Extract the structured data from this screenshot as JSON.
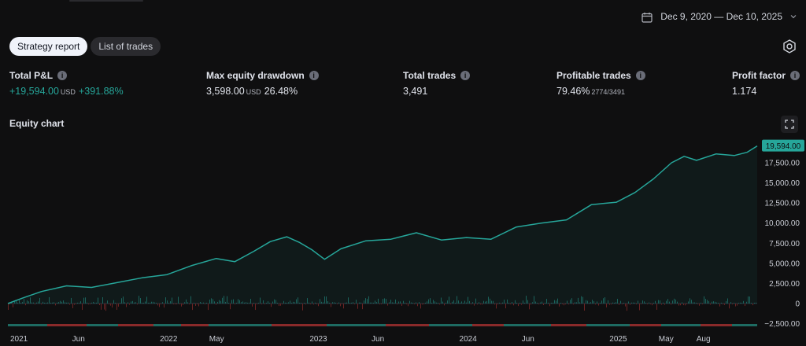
{
  "date_range": "Dec 9, 2020 — Dec 10, 2025",
  "tabs": [
    {
      "label": "Strategy report",
      "active": true
    },
    {
      "label": "List of trades",
      "active": false
    }
  ],
  "metrics": {
    "total_pl": {
      "label": "Total P&L",
      "value": "+19,594.00",
      "unit": "USD",
      "pct": "+391.88%"
    },
    "max_drawdown": {
      "label": "Max equity drawdown",
      "value": "3,598.00",
      "unit": "USD",
      "pct": "26.48%"
    },
    "total_trades": {
      "label": "Total trades",
      "value": "3,491"
    },
    "profitable_trades": {
      "label": "Profitable trades",
      "value": "79.46%",
      "detail": "2774/3491"
    },
    "profit_factor": {
      "label": "Profit factor",
      "value": "1.174"
    }
  },
  "equity_title": "Equity chart",
  "colors": {
    "accent": "#26a69a",
    "negative": "#ef5350",
    "background": "#0f0f10"
  },
  "icons": {
    "calendar": "calendar-icon",
    "settings": "settings-icon",
    "expand": "expand-icon",
    "info": "info-icon"
  },
  "chart_data": {
    "type": "area",
    "current_value_label": "19,594.00",
    "ylim": [
      -2500,
      20000
    ],
    "y_ticks": [
      -2500,
      0,
      2500,
      5000,
      7500,
      10000,
      12500,
      15000,
      17500
    ],
    "y_tick_labels": [
      "−2,500.00",
      "0",
      "2,500.00",
      "5,000.00",
      "7,500.00",
      "10,000.00",
      "12,500.00",
      "15,000.00",
      "17,500.00"
    ],
    "x_tick_labels": [
      "2021",
      "Jun",
      "2022",
      "May",
      "2023",
      "Jun",
      "2024",
      "Jun",
      "2025",
      "May",
      "Aug"
    ],
    "x_tick_dates": [
      "2021-01",
      "2021-06",
      "2022-01",
      "2022-05",
      "2023-01",
      "2023-06",
      "2024-01",
      "2024-06",
      "2025-01",
      "2025-05",
      "2025-08"
    ],
    "series": [
      {
        "x": [
          "2020-12-09",
          "2021-01-15",
          "2021-03-01",
          "2021-05-01",
          "2021-07-01",
          "2021-09-01",
          "2021-11-01",
          "2022-01-01",
          "2022-03-01",
          "2022-05-01",
          "2022-06-15",
          "2022-08-01",
          "2022-09-10",
          "2022-10-20",
          "2022-11-20",
          "2022-12-20",
          "2023-01-20",
          "2023-03-01",
          "2023-05-01",
          "2023-07-01",
          "2023-09-01",
          "2023-11-01",
          "2024-01-01",
          "2024-03-01",
          "2024-05-01",
          "2024-07-01",
          "2024-09-01",
          "2024-11-01",
          "2025-01-01",
          "2025-02-15",
          "2025-04-01",
          "2025-05-15",
          "2025-06-15",
          "2025-07-15",
          "2025-09-01",
          "2025-10-15",
          "2025-11-15",
          "2025-12-10"
        ],
        "values": [
          0,
          700,
          1500,
          2200,
          2000,
          2600,
          3200,
          3600,
          4700,
          5600,
          5200,
          6500,
          7700,
          8300,
          7600,
          6700,
          5500,
          6800,
          7800,
          8000,
          8800,
          7900,
          8200,
          8000,
          9500,
          10000,
          10400,
          12300,
          12600,
          13800,
          15500,
          17500,
          18300,
          17800,
          18600,
          18400,
          18800,
          19594
        ]
      }
    ]
  }
}
